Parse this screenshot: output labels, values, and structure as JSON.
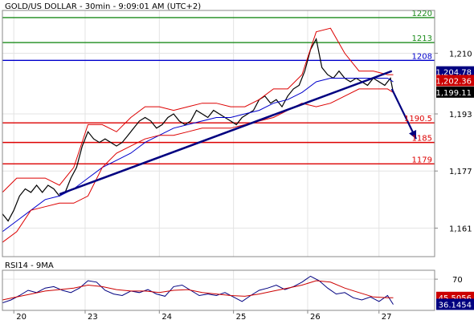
{
  "chart_data": [
    {
      "type": "line",
      "title": "GOLD/US DOLLAR - 30min - 9:09:01 AM (UTC+2)",
      "xlabel": "",
      "ylabel": "",
      "ylim": [
        1153,
        1222
      ],
      "grid": true,
      "yticks": [
        1161,
        1177,
        1193,
        1210
      ],
      "yticks_labels": [
        "1,161",
        "1,177",
        "1,193",
        "1,210"
      ],
      "x_date_labels": [
        "20",
        "23",
        "24",
        "25",
        "26",
        "27"
      ],
      "x_date_positions": [
        8,
        58,
        110,
        162,
        214,
        264
      ],
      "x_range": [
        0,
        303
      ],
      "price_badges": [
        {
          "label": "1,204.78",
          "value": 1204.78,
          "color": "#000080"
        },
        {
          "label": "1,202.36",
          "value": 1202.36,
          "color": "#cc0000"
        },
        {
          "label": "1,199.11",
          "value": 1199.11,
          "color": "#000000"
        }
      ],
      "horizontal_levels": [
        {
          "label": "1220",
          "value": 1220,
          "color": "#1a8c1a"
        },
        {
          "label": "1213",
          "value": 1213,
          "color": "#1a8c1a"
        },
        {
          "label": "1208",
          "value": 1208,
          "color": "#0000cc"
        },
        {
          "label": "1190.5",
          "value": 1190.5,
          "color": "#dd0000"
        },
        {
          "label": "1185",
          "value": 1185,
          "color": "#dd0000"
        },
        {
          "label": "1179",
          "value": 1179,
          "color": "#dd0000"
        }
      ],
      "trendline": {
        "x": [
          40,
          273
        ],
        "y": [
          1170.5,
          1205
        ]
      },
      "forecast_arrow": {
        "x": [
          273,
          290
        ],
        "y": [
          1200,
          1186
        ]
      },
      "series": [
        {
          "name": "price",
          "color": "#000000",
          "x": [
            0,
            4,
            8,
            12,
            16,
            20,
            24,
            28,
            32,
            36,
            40,
            44,
            48,
            52,
            56,
            60,
            64,
            68,
            72,
            76,
            80,
            84,
            88,
            92,
            96,
            100,
            104,
            108,
            112,
            116,
            120,
            124,
            128,
            132,
            136,
            140,
            144,
            148,
            152,
            156,
            160,
            164,
            168,
            172,
            176,
            180,
            184,
            188,
            192,
            196,
            200,
            204,
            208,
            212,
            216,
            220,
            224,
            228,
            232,
            236,
            240,
            244,
            248,
            252,
            256,
            260,
            264,
            268,
            272,
            274
          ],
          "y": [
            1165,
            1163,
            1166,
            1170,
            1172,
            1171,
            1173,
            1171,
            1173,
            1172,
            1170,
            1171,
            1175,
            1178,
            1184,
            1188,
            1186,
            1185,
            1186,
            1185,
            1184,
            1185,
            1187,
            1189,
            1191,
            1192,
            1191,
            1189,
            1190,
            1192,
            1193,
            1191,
            1190,
            1191,
            1194,
            1193,
            1192,
            1194,
            1193,
            1192,
            1191,
            1190,
            1192,
            1193,
            1194,
            1197,
            1198,
            1196,
            1197,
            1195,
            1198,
            1200,
            1201,
            1205,
            1211,
            1214,
            1206,
            1204,
            1203,
            1205,
            1203,
            1202,
            1203,
            1202,
            1201,
            1203,
            1202,
            1201,
            1203,
            1199
          ]
        },
        {
          "name": "",
          "color": "#0000cc",
          "x": [
            0,
            10,
            20,
            30,
            40,
            50,
            60,
            70,
            80,
            90,
            100,
            110,
            120,
            130,
            140,
            150,
            160,
            170,
            180,
            190,
            200,
            210,
            220,
            230,
            240,
            250,
            260,
            270,
            274
          ],
          "y": [
            1160,
            1163,
            1166,
            1169,
            1170,
            1172,
            1175,
            1178,
            1180,
            1182,
            1185,
            1187,
            1189,
            1190,
            1191,
            1192,
            1192,
            1193,
            1194,
            1196,
            1197,
            1199,
            1202,
            1203,
            1203,
            1203,
            1203,
            1203,
            1202
          ]
        },
        {
          "name": "",
          "color": "#dd0000",
          "x": [
            0,
            10,
            20,
            30,
            40,
            50,
            60,
            70,
            80,
            90,
            100,
            110,
            120,
            130,
            140,
            150,
            160,
            170,
            180,
            190,
            200,
            210,
            220,
            230,
            240,
            250,
            260,
            270,
            274
          ],
          "y": [
            1171,
            1175,
            1175,
            1175,
            1173,
            1178,
            1190,
            1190,
            1188,
            1192,
            1195,
            1195,
            1194,
            1195,
            1196,
            1196,
            1195,
            1195,
            1197,
            1200,
            1200,
            1204,
            1216,
            1217,
            1210,
            1205,
            1205,
            1204,
            1204
          ]
        },
        {
          "name": "",
          "color": "#dd0000",
          "x": [
            0,
            10,
            20,
            30,
            40,
            50,
            60,
            70,
            80,
            90,
            100,
            110,
            120,
            130,
            140,
            150,
            160,
            170,
            180,
            190,
            200,
            210,
            220,
            230,
            240,
            250,
            260,
            270,
            274
          ],
          "y": [
            1157,
            1160,
            1166,
            1167,
            1168,
            1168,
            1170,
            1178,
            1182,
            1184,
            1186,
            1187,
            1187,
            1188,
            1189,
            1189,
            1189,
            1190,
            1191,
            1192,
            1194,
            1196,
            1195,
            1196,
            1198,
            1200,
            1200,
            1200,
            1199
          ]
        }
      ]
    },
    {
      "type": "line",
      "title": "RSI14 - 9MA",
      "xlabel": "",
      "ylabel": "",
      "ylim": [
        28,
        82
      ],
      "yticks": [
        70
      ],
      "yticks_labels": [
        "70"
      ],
      "price_badges": [
        {
          "label": "45.5056",
          "value": 45.5056,
          "color": "#cc0000"
        },
        {
          "label": "36.1454",
          "value": 36.1454,
          "color": "#000080"
        }
      ],
      "series": [
        {
          "name": "RSI14",
          "color": "#000080",
          "x": [
            0,
            6,
            12,
            18,
            24,
            30,
            36,
            42,
            48,
            54,
            60,
            66,
            72,
            78,
            84,
            90,
            96,
            102,
            108,
            114,
            120,
            126,
            132,
            138,
            144,
            150,
            156,
            162,
            168,
            174,
            180,
            186,
            192,
            198,
            204,
            210,
            216,
            222,
            228,
            234,
            240,
            246,
            252,
            258,
            264,
            270,
            274
          ],
          "y": [
            38,
            42,
            48,
            55,
            52,
            58,
            60,
            55,
            52,
            58,
            68,
            66,
            55,
            50,
            48,
            54,
            52,
            56,
            50,
            47,
            60,
            62,
            55,
            48,
            50,
            48,
            52,
            46,
            40,
            48,
            55,
            58,
            62,
            56,
            60,
            66,
            74,
            68,
            58,
            50,
            52,
            45,
            42,
            46,
            40,
            48,
            36
          ]
        },
        {
          "name": "9MA",
          "color": "#cc0000",
          "x": [
            0,
            10,
            20,
            30,
            40,
            50,
            60,
            70,
            80,
            90,
            100,
            110,
            120,
            130,
            140,
            150,
            160,
            170,
            180,
            190,
            200,
            210,
            220,
            230,
            240,
            250,
            260,
            270,
            274
          ],
          "y": [
            42,
            46,
            50,
            54,
            56,
            58,
            62,
            60,
            56,
            54,
            54,
            52,
            55,
            56,
            52,
            50,
            48,
            47,
            50,
            54,
            58,
            62,
            68,
            66,
            58,
            52,
            46,
            45,
            45
          ]
        }
      ]
    }
  ]
}
